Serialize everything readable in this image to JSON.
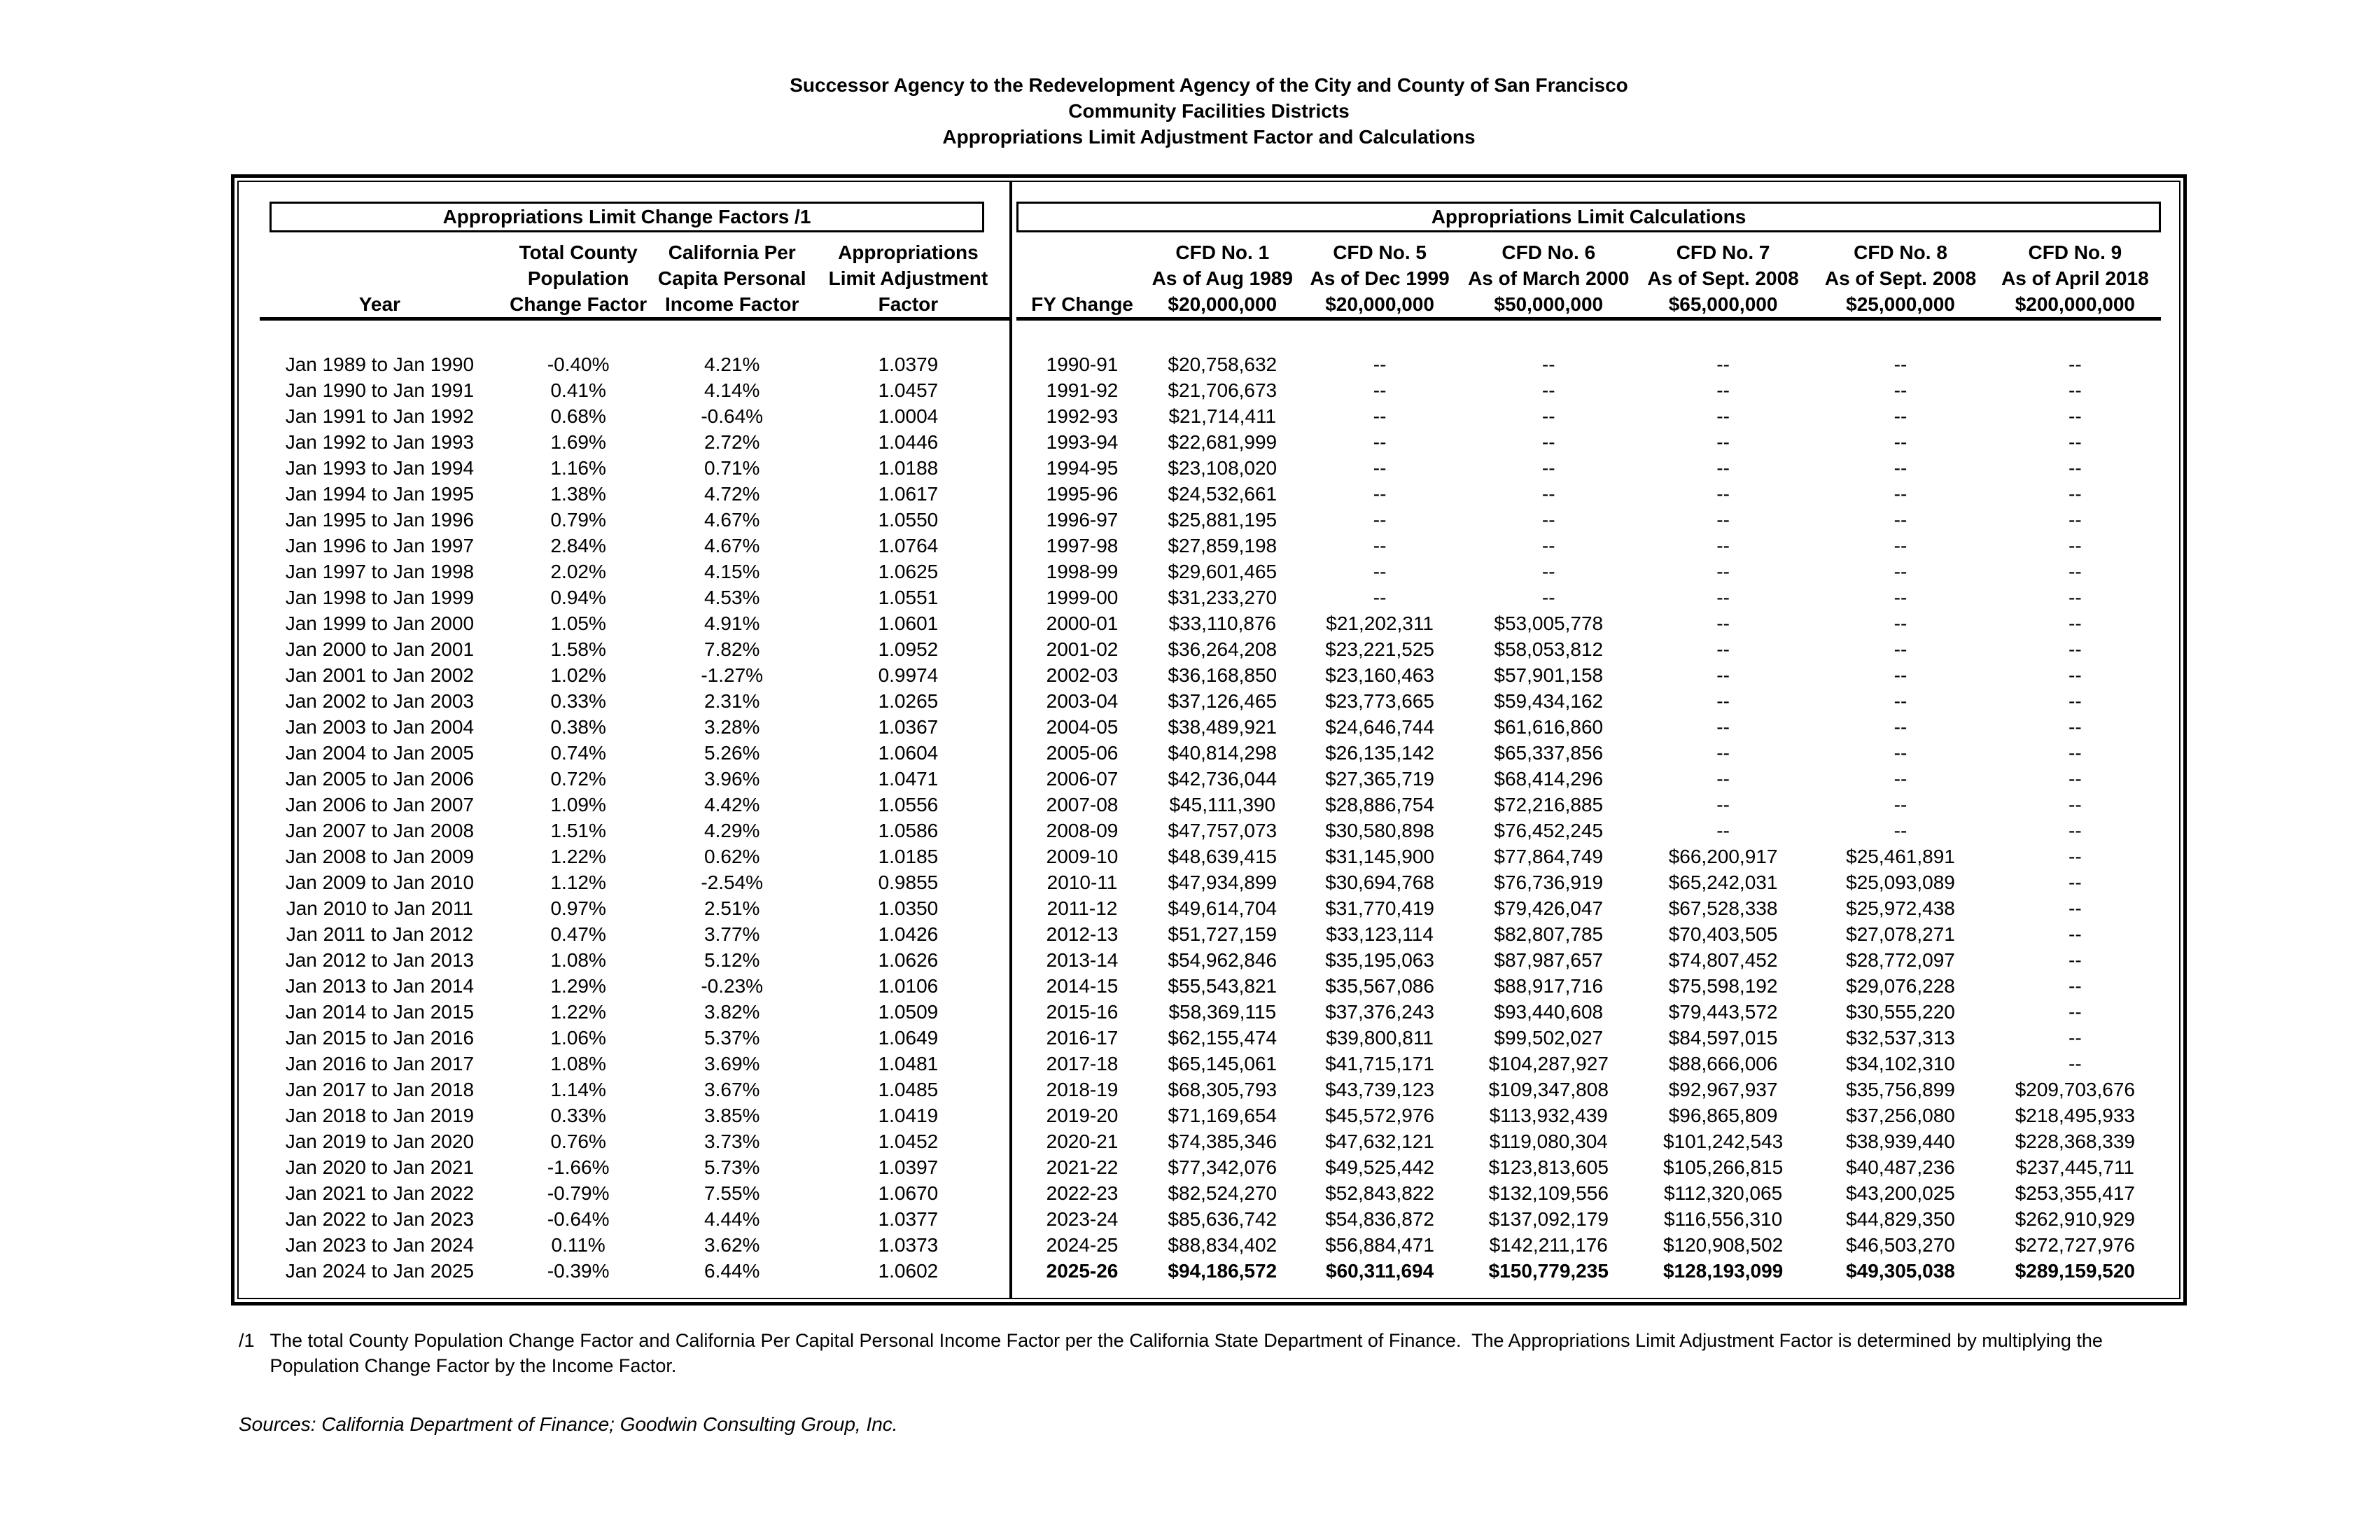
{
  "colors": {
    "ink": "#000000",
    "paper": "#ffffff"
  },
  "title": {
    "line1": "Successor Agency to the Redevelopment Agency of the City and County of San Francisco",
    "line2": "Community Facilities Districts",
    "line3": "Appropriations Limit Adjustment Factor and Calculations"
  },
  "left_table": {
    "box_title": "Appropriations Limit Change Factors /1",
    "header": {
      "year": "Year",
      "pop": [
        "Total County",
        "Population",
        "Change Factor"
      ],
      "income": [
        "California Per",
        "Capita Personal",
        "Income Factor"
      ],
      "factor": [
        "Appropriations",
        "Limit Adjustment",
        "Factor"
      ]
    },
    "rows": [
      {
        "year": "Jan 1989 to Jan 1990",
        "pop": "-0.40%",
        "income": "4.21%",
        "factor": "1.0379"
      },
      {
        "year": "Jan 1990 to Jan 1991",
        "pop": "0.41%",
        "income": "4.14%",
        "factor": "1.0457"
      },
      {
        "year": "Jan 1991 to Jan 1992",
        "pop": "0.68%",
        "income": "-0.64%",
        "factor": "1.0004"
      },
      {
        "year": "Jan 1992 to Jan 1993",
        "pop": "1.69%",
        "income": "2.72%",
        "factor": "1.0446"
      },
      {
        "year": "Jan 1993 to Jan 1994",
        "pop": "1.16%",
        "income": "0.71%",
        "factor": "1.0188"
      },
      {
        "year": "Jan 1994 to Jan 1995",
        "pop": "1.38%",
        "income": "4.72%",
        "factor": "1.0617"
      },
      {
        "year": "Jan 1995 to Jan 1996",
        "pop": "0.79%",
        "income": "4.67%",
        "factor": "1.0550"
      },
      {
        "year": "Jan 1996 to Jan 1997",
        "pop": "2.84%",
        "income": "4.67%",
        "factor": "1.0764"
      },
      {
        "year": "Jan 1997 to Jan 1998",
        "pop": "2.02%",
        "income": "4.15%",
        "factor": "1.0625"
      },
      {
        "year": "Jan 1998 to Jan 1999",
        "pop": "0.94%",
        "income": "4.53%",
        "factor": "1.0551"
      },
      {
        "year": "Jan 1999 to Jan 2000",
        "pop": "1.05%",
        "income": "4.91%",
        "factor": "1.0601"
      },
      {
        "year": "Jan 2000 to Jan 2001",
        "pop": "1.58%",
        "income": "7.82%",
        "factor": "1.0952"
      },
      {
        "year": "Jan 2001 to Jan 2002",
        "pop": "1.02%",
        "income": "-1.27%",
        "factor": "0.9974"
      },
      {
        "year": "Jan 2002 to Jan 2003",
        "pop": "0.33%",
        "income": "2.31%",
        "factor": "1.0265"
      },
      {
        "year": "Jan 2003 to Jan 2004",
        "pop": "0.38%",
        "income": "3.28%",
        "factor": "1.0367"
      },
      {
        "year": "Jan 2004 to Jan 2005",
        "pop": "0.74%",
        "income": "5.26%",
        "factor": "1.0604"
      },
      {
        "year": "Jan 2005 to Jan 2006",
        "pop": "0.72%",
        "income": "3.96%",
        "factor": "1.0471"
      },
      {
        "year": "Jan 2006 to Jan 2007",
        "pop": "1.09%",
        "income": "4.42%",
        "factor": "1.0556"
      },
      {
        "year": "Jan 2007 to Jan 2008",
        "pop": "1.51%",
        "income": "4.29%",
        "factor": "1.0586"
      },
      {
        "year": "Jan 2008 to Jan 2009",
        "pop": "1.22%",
        "income": "0.62%",
        "factor": "1.0185"
      },
      {
        "year": "Jan 2009 to Jan 2010",
        "pop": "1.12%",
        "income": "-2.54%",
        "factor": "0.9855"
      },
      {
        "year": "Jan 2010 to Jan 2011",
        "pop": "0.97%",
        "income": "2.51%",
        "factor": "1.0350"
      },
      {
        "year": "Jan 2011 to Jan 2012",
        "pop": "0.47%",
        "income": "3.77%",
        "factor": "1.0426"
      },
      {
        "year": "Jan 2012 to Jan 2013",
        "pop": "1.08%",
        "income": "5.12%",
        "factor": "1.0626"
      },
      {
        "year": "Jan 2013 to Jan 2014",
        "pop": "1.29%",
        "income": "-0.23%",
        "factor": "1.0106"
      },
      {
        "year": "Jan 2014 to Jan 2015",
        "pop": "1.22%",
        "income": "3.82%",
        "factor": "1.0509"
      },
      {
        "year": "Jan 2015 to Jan 2016",
        "pop": "1.06%",
        "income": "5.37%",
        "factor": "1.0649"
      },
      {
        "year": "Jan 2016 to Jan 2017",
        "pop": "1.08%",
        "income": "3.69%",
        "factor": "1.0481"
      },
      {
        "year": "Jan 2017 to Jan 2018",
        "pop": "1.14%",
        "income": "3.67%",
        "factor": "1.0485"
      },
      {
        "year": "Jan 2018 to Jan 2019",
        "pop": "0.33%",
        "income": "3.85%",
        "factor": "1.0419"
      },
      {
        "year": "Jan 2019 to Jan 2020",
        "pop": "0.76%",
        "income": "3.73%",
        "factor": "1.0452"
      },
      {
        "year": "Jan 2020 to Jan 2021",
        "pop": "-1.66%",
        "income": "5.73%",
        "factor": "1.0397"
      },
      {
        "year": "Jan 2021 to Jan 2022",
        "pop": "-0.79%",
        "income": "7.55%",
        "factor": "1.0670"
      },
      {
        "year": "Jan 2022 to Jan 2023",
        "pop": "-0.64%",
        "income": "4.44%",
        "factor": "1.0377"
      },
      {
        "year": "Jan 2023 to Jan 2024",
        "pop": "0.11%",
        "income": "3.62%",
        "factor": "1.0373"
      },
      {
        "year": "Jan 2024 to Jan 2025",
        "pop": "-0.39%",
        "income": "6.44%",
        "factor": "1.0602"
      }
    ]
  },
  "right_table": {
    "box_title": "Appropriations Limit Calculations",
    "header": {
      "fy": "FY Change",
      "cfds": [
        {
          "name": "CFD No. 1",
          "as_of": "As of Aug 1989",
          "base": "$20,000,000"
        },
        {
          "name": "CFD No. 5",
          "as_of": "As of Dec 1999",
          "base": "$20,000,000"
        },
        {
          "name": "CFD No. 6",
          "as_of": "As of March 2000",
          "base": "$50,000,000"
        },
        {
          "name": "CFD No. 7",
          "as_of": "As of Sept. 2008",
          "base": "$65,000,000"
        },
        {
          "name": "CFD No. 8",
          "as_of": "As of Sept. 2008",
          "base": "$25,000,000"
        },
        {
          "name": "CFD No. 9",
          "as_of": "As of April 2018",
          "base": "$200,000,000"
        }
      ]
    },
    "rows": [
      {
        "fy": "1990-91",
        "values": [
          "$20,758,632",
          "--",
          "--",
          "--",
          "--",
          "--"
        ],
        "bold": false
      },
      {
        "fy": "1991-92",
        "values": [
          "$21,706,673",
          "--",
          "--",
          "--",
          "--",
          "--"
        ],
        "bold": false
      },
      {
        "fy": "1992-93",
        "values": [
          "$21,714,411",
          "--",
          "--",
          "--",
          "--",
          "--"
        ],
        "bold": false
      },
      {
        "fy": "1993-94",
        "values": [
          "$22,681,999",
          "--",
          "--",
          "--",
          "--",
          "--"
        ],
        "bold": false
      },
      {
        "fy": "1994-95",
        "values": [
          "$23,108,020",
          "--",
          "--",
          "--",
          "--",
          "--"
        ],
        "bold": false
      },
      {
        "fy": "1995-96",
        "values": [
          "$24,532,661",
          "--",
          "--",
          "--",
          "--",
          "--"
        ],
        "bold": false
      },
      {
        "fy": "1996-97",
        "values": [
          "$25,881,195",
          "--",
          "--",
          "--",
          "--",
          "--"
        ],
        "bold": false
      },
      {
        "fy": "1997-98",
        "values": [
          "$27,859,198",
          "--",
          "--",
          "--",
          "--",
          "--"
        ],
        "bold": false
      },
      {
        "fy": "1998-99",
        "values": [
          "$29,601,465",
          "--",
          "--",
          "--",
          "--",
          "--"
        ],
        "bold": false
      },
      {
        "fy": "1999-00",
        "values": [
          "$31,233,270",
          "--",
          "--",
          "--",
          "--",
          "--"
        ],
        "bold": false
      },
      {
        "fy": "2000-01",
        "values": [
          "$33,110,876",
          "$21,202,311",
          "$53,005,778",
          "--",
          "--",
          "--"
        ],
        "bold": false
      },
      {
        "fy": "2001-02",
        "values": [
          "$36,264,208",
          "$23,221,525",
          "$58,053,812",
          "--",
          "--",
          "--"
        ],
        "bold": false
      },
      {
        "fy": "2002-03",
        "values": [
          "$36,168,850",
          "$23,160,463",
          "$57,901,158",
          "--",
          "--",
          "--"
        ],
        "bold": false
      },
      {
        "fy": "2003-04",
        "values": [
          "$37,126,465",
          "$23,773,665",
          "$59,434,162",
          "--",
          "--",
          "--"
        ],
        "bold": false
      },
      {
        "fy": "2004-05",
        "values": [
          "$38,489,921",
          "$24,646,744",
          "$61,616,860",
          "--",
          "--",
          "--"
        ],
        "bold": false
      },
      {
        "fy": "2005-06",
        "values": [
          "$40,814,298",
          "$26,135,142",
          "$65,337,856",
          "--",
          "--",
          "--"
        ],
        "bold": false
      },
      {
        "fy": "2006-07",
        "values": [
          "$42,736,044",
          "$27,365,719",
          "$68,414,296",
          "--",
          "--",
          "--"
        ],
        "bold": false
      },
      {
        "fy": "2007-08",
        "values": [
          "$45,111,390",
          "$28,886,754",
          "$72,216,885",
          "--",
          "--",
          "--"
        ],
        "bold": false
      },
      {
        "fy": "2008-09",
        "values": [
          "$47,757,073",
          "$30,580,898",
          "$76,452,245",
          "--",
          "--",
          "--"
        ],
        "bold": false
      },
      {
        "fy": "2009-10",
        "values": [
          "$48,639,415",
          "$31,145,900",
          "$77,864,749",
          "$66,200,917",
          "$25,461,891",
          "--"
        ],
        "bold": false
      },
      {
        "fy": "2010-11",
        "values": [
          "$47,934,899",
          "$30,694,768",
          "$76,736,919",
          "$65,242,031",
          "$25,093,089",
          "--"
        ],
        "bold": false
      },
      {
        "fy": "2011-12",
        "values": [
          "$49,614,704",
          "$31,770,419",
          "$79,426,047",
          "$67,528,338",
          "$25,972,438",
          "--"
        ],
        "bold": false
      },
      {
        "fy": "2012-13",
        "values": [
          "$51,727,159",
          "$33,123,114",
          "$82,807,785",
          "$70,403,505",
          "$27,078,271",
          "--"
        ],
        "bold": false
      },
      {
        "fy": "2013-14",
        "values": [
          "$54,962,846",
          "$35,195,063",
          "$87,987,657",
          "$74,807,452",
          "$28,772,097",
          "--"
        ],
        "bold": false
      },
      {
        "fy": "2014-15",
        "values": [
          "$55,543,821",
          "$35,567,086",
          "$88,917,716",
          "$75,598,192",
          "$29,076,228",
          "--"
        ],
        "bold": false
      },
      {
        "fy": "2015-16",
        "values": [
          "$58,369,115",
          "$37,376,243",
          "$93,440,608",
          "$79,443,572",
          "$30,555,220",
          "--"
        ],
        "bold": false
      },
      {
        "fy": "2016-17",
        "values": [
          "$62,155,474",
          "$39,800,811",
          "$99,502,027",
          "$84,597,015",
          "$32,537,313",
          "--"
        ],
        "bold": false
      },
      {
        "fy": "2017-18",
        "values": [
          "$65,145,061",
          "$41,715,171",
          "$104,287,927",
          "$88,666,006",
          "$34,102,310",
          "--"
        ],
        "bold": false
      },
      {
        "fy": "2018-19",
        "values": [
          "$68,305,793",
          "$43,739,123",
          "$109,347,808",
          "$92,967,937",
          "$35,756,899",
          "$209,703,676"
        ],
        "bold": false
      },
      {
        "fy": "2019-20",
        "values": [
          "$71,169,654",
          "$45,572,976",
          "$113,932,439",
          "$96,865,809",
          "$37,256,080",
          "$218,495,933"
        ],
        "bold": false
      },
      {
        "fy": "2020-21",
        "values": [
          "$74,385,346",
          "$47,632,121",
          "$119,080,304",
          "$101,242,543",
          "$38,939,440",
          "$228,368,339"
        ],
        "bold": false
      },
      {
        "fy": "2021-22",
        "values": [
          "$77,342,076",
          "$49,525,442",
          "$123,813,605",
          "$105,266,815",
          "$40,487,236",
          "$237,445,711"
        ],
        "bold": false
      },
      {
        "fy": "2022-23",
        "values": [
          "$82,524,270",
          "$52,843,822",
          "$132,109,556",
          "$112,320,065",
          "$43,200,025",
          "$253,355,417"
        ],
        "bold": false
      },
      {
        "fy": "2023-24",
        "values": [
          "$85,636,742",
          "$54,836,872",
          "$137,092,179",
          "$116,556,310",
          "$44,829,350",
          "$262,910,929"
        ],
        "bold": false
      },
      {
        "fy": "2024-25",
        "values": [
          "$88,834,402",
          "$56,884,471",
          "$142,211,176",
          "$120,908,502",
          "$46,503,270",
          "$272,727,976"
        ],
        "bold": false
      },
      {
        "fy": "2025-26",
        "values": [
          "$94,186,572",
          "$60,311,694",
          "$150,779,235",
          "$128,193,099",
          "$49,305,038",
          "$289,159,520"
        ],
        "bold": true
      }
    ]
  },
  "footnote": {
    "marker": "/1",
    "line1": "The total County Population Change Factor and California Per Capital Personal Income Factor per the California State Department of Finance.  The Appropriations Limit Adjustment Factor is determined by multiplying the",
    "line2": "Population Change Factor by the Income Factor."
  },
  "sources": "Sources: California Department of Finance; Goodwin Consulting Group, Inc."
}
